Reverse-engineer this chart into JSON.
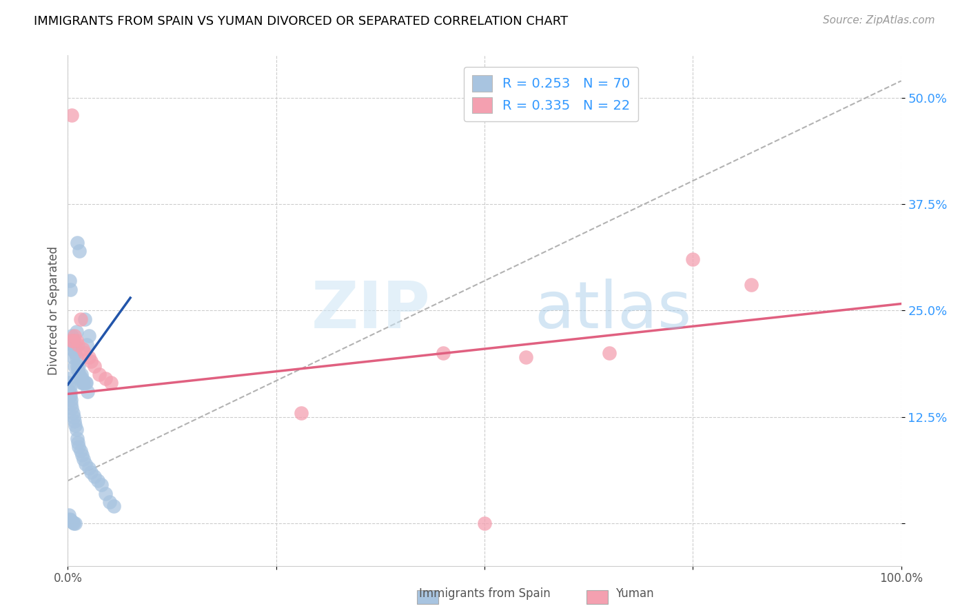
{
  "title": "IMMIGRANTS FROM SPAIN VS YUMAN DIVORCED OR SEPARATED CORRELATION CHART",
  "source": "Source: ZipAtlas.com",
  "ylabel": "Divorced or Separated",
  "xlim": [
    0.0,
    1.0
  ],
  "ylim": [
    -0.05,
    0.55
  ],
  "xticks": [
    0.0,
    0.25,
    0.5,
    0.75,
    1.0
  ],
  "xtick_labels": [
    "0.0%",
    "",
    "",
    "",
    "100.0%"
  ],
  "yticks": [
    0.0,
    0.125,
    0.25,
    0.375,
    0.5
  ],
  "ytick_labels": [
    "",
    "12.5%",
    "25.0%",
    "37.5%",
    "50.0%"
  ],
  "blue_color": "#a8c4e0",
  "blue_line_color": "#2255aa",
  "pink_color": "#f4a0b0",
  "pink_line_color": "#e06080",
  "dashed_line_color": "#aaaaaa",
  "grid_color": "#cccccc",
  "legend_text_color": "#3399ff",
  "watermark_zip": "ZIP",
  "watermark_atlas": "atlas",
  "blue_scatter_x": [
    0.002,
    0.003,
    0.003,
    0.004,
    0.005,
    0.005,
    0.006,
    0.006,
    0.007,
    0.008,
    0.008,
    0.009,
    0.01,
    0.01,
    0.011,
    0.012,
    0.013,
    0.014,
    0.015,
    0.016,
    0.016,
    0.017,
    0.018,
    0.019,
    0.02,
    0.021,
    0.022,
    0.023,
    0.024,
    0.025,
    0.001,
    0.001,
    0.001,
    0.002,
    0.002,
    0.003,
    0.003,
    0.004,
    0.004,
    0.005,
    0.006,
    0.007,
    0.008,
    0.009,
    0.01,
    0.011,
    0.012,
    0.013,
    0.015,
    0.017,
    0.019,
    0.021,
    0.025,
    0.028,
    0.032,
    0.036,
    0.04,
    0.045,
    0.05,
    0.055,
    0.001,
    0.002,
    0.003,
    0.004,
    0.005,
    0.006,
    0.007,
    0.009,
    0.011,
    0.014
  ],
  "blue_scatter_y": [
    0.285,
    0.275,
    0.215,
    0.21,
    0.22,
    0.205,
    0.21,
    0.195,
    0.215,
    0.21,
    0.185,
    0.2,
    0.195,
    0.225,
    0.185,
    0.18,
    0.185,
    0.175,
    0.17,
    0.175,
    0.165,
    0.17,
    0.165,
    0.165,
    0.24,
    0.165,
    0.165,
    0.21,
    0.155,
    0.22,
    0.17,
    0.165,
    0.155,
    0.16,
    0.15,
    0.155,
    0.15,
    0.145,
    0.14,
    0.135,
    0.13,
    0.125,
    0.12,
    0.115,
    0.11,
    0.1,
    0.095,
    0.09,
    0.085,
    0.08,
    0.075,
    0.07,
    0.065,
    0.06,
    0.055,
    0.05,
    0.045,
    0.035,
    0.025,
    0.02,
    0.01,
    0.005,
    0.004,
    0.003,
    0.002,
    0.001,
    0.0,
    0.0,
    0.33,
    0.32
  ],
  "pink_scatter_x": [
    0.005,
    0.006,
    0.008,
    0.01,
    0.012,
    0.015,
    0.018,
    0.02,
    0.025,
    0.028,
    0.032,
    0.038,
    0.045,
    0.052,
    0.28,
    0.45,
    0.5,
    0.55,
    0.65,
    0.75,
    0.82,
    0.005
  ],
  "pink_scatter_y": [
    0.48,
    0.215,
    0.22,
    0.215,
    0.21,
    0.24,
    0.205,
    0.2,
    0.195,
    0.19,
    0.185,
    0.175,
    0.17,
    0.165,
    0.13,
    0.2,
    0.0,
    0.195,
    0.2,
    0.31,
    0.28,
    0.215
  ],
  "blue_line_x": [
    0.0,
    0.075
  ],
  "blue_line_y": [
    0.163,
    0.265
  ],
  "pink_line_x": [
    0.0,
    1.0
  ],
  "pink_line_y": [
    0.152,
    0.258
  ],
  "dashed_line_x": [
    0.0,
    1.0
  ],
  "dashed_line_y": [
    0.05,
    0.52
  ]
}
